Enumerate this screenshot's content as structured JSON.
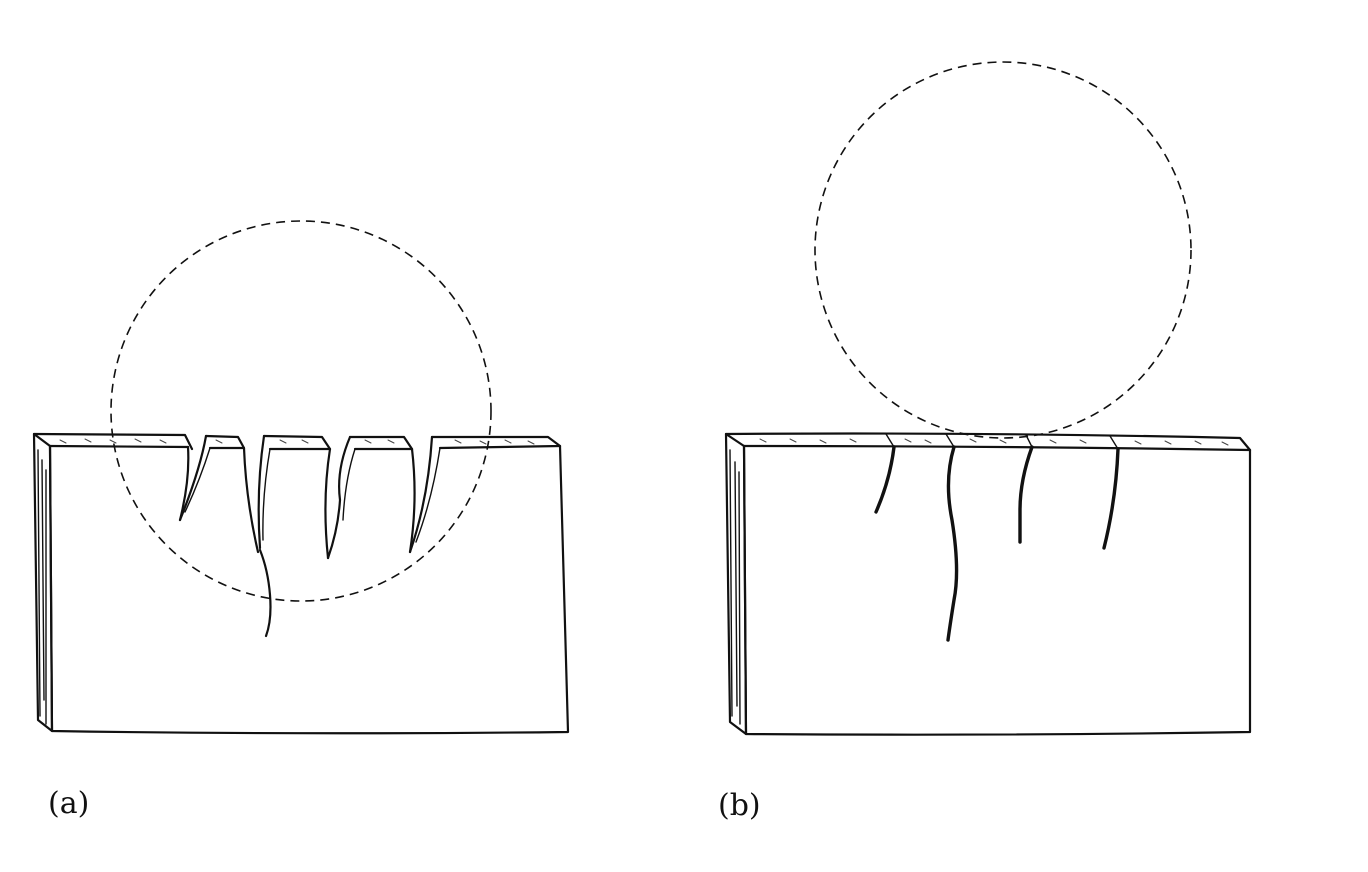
{
  "figure": {
    "panels": [
      {
        "id": "a",
        "label": "(a)",
        "roller": "pressing",
        "cracks": "open-wedge"
      },
      {
        "id": "b",
        "label": "(b)",
        "roller": "lifted",
        "cracks": "closed"
      }
    ],
    "colors": {
      "ink": "#111111",
      "background": "#ffffff"
    }
  }
}
